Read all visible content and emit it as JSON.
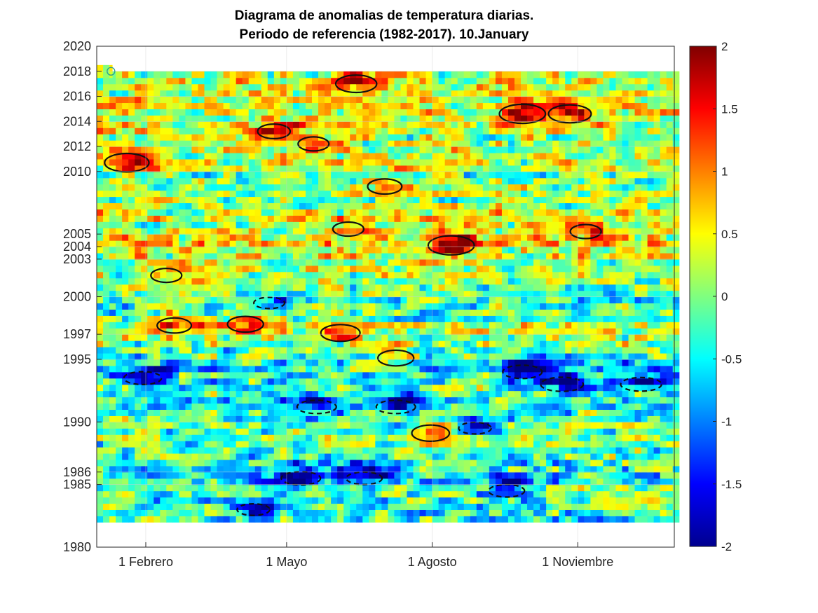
{
  "chart_data": {
    "type": "heatmap",
    "title": "Diagrama de anomalias de temperatura diarias.",
    "subtitle": "Periodo de referencia (1982-2017). 10.January",
    "x_ticks": [
      "1 Febrero",
      "1 Mayo",
      "1 Agosto",
      "1 Noviembre"
    ],
    "x_tick_days": [
      32,
      121,
      213,
      305
    ],
    "x_range": [
      1,
      366
    ],
    "y_ticks": [
      1980,
      1985,
      1986,
      1990,
      1995,
      1997,
      2000,
      2003,
      2004,
      2005,
      2010,
      2012,
      2014,
      2016,
      2018,
      2020
    ],
    "y_range": [
      1980,
      2020
    ],
    "data_years": [
      1982,
      2017
    ],
    "current_day": {
      "year": 2018,
      "day": 10
    },
    "colorbar": {
      "min": -2,
      "max": 2,
      "ticks": [
        2,
        1.5,
        1,
        0.5,
        0,
        -0.5,
        -1,
        -1.5,
        -2
      ],
      "tick_labels": [
        "2",
        "1.5",
        "1",
        "0.5",
        "0",
        "-0.5",
        "-1",
        "-1.5",
        "-2"
      ],
      "colormap": "jet"
    },
    "year_bias": {
      "1982": -0.4,
      "1983": -0.3,
      "1984": -0.2,
      "1985": -0.6,
      "1986": -0.5,
      "1987": -0.3,
      "1988": -0.1,
      "1989": -0.2,
      "1990": -0.3,
      "1991": -0.5,
      "1992": -0.2,
      "1993": -0.4,
      "1994": -0.6,
      "1995": -0.3,
      "1996": 0.1,
      "1997": 0.5,
      "1998": -0.2,
      "1999": -0.3,
      "2000": -0.1,
      "2001": 0.1,
      "2002": 0.3,
      "2003": 0.4,
      "2004": 0.6,
      "2005": 0.2,
      "2006": 0.4,
      "2007": 0.0,
      "2008": 0.1,
      "2009": -0.2,
      "2010": 0.3,
      "2011": 0.3,
      "2012": 0.2,
      "2013": 0.5,
      "2014": 0.4,
      "2015": 0.5,
      "2016": 0.4,
      "2017": 0.3
    },
    "hot_spots": [
      {
        "year": 2010.7,
        "day": 20,
        "amp": 1.8
      },
      {
        "year": 2017.0,
        "day": 165,
        "amp": 1.6
      },
      {
        "year": 2014.6,
        "day": 270,
        "amp": 1.9
      },
      {
        "year": 2014.6,
        "day": 300,
        "amp": 1.7
      },
      {
        "year": 2004.1,
        "day": 225,
        "amp": 1.9
      },
      {
        "year": 1997.1,
        "day": 155,
        "amp": 1.5
      },
      {
        "year": 1997.7,
        "day": 50,
        "amp": 1.2
      },
      {
        "year": 1997.8,
        "day": 95,
        "amp": 1.3
      },
      {
        "year": 1989.1,
        "day": 212,
        "amp": 1.4
      },
      {
        "year": 1995.1,
        "day": 190,
        "amp": 1.3
      },
      {
        "year": 2008.8,
        "day": 183,
        "amp": 1.2
      },
      {
        "year": 2013.2,
        "day": 113,
        "amp": 1.1
      },
      {
        "year": 2012.2,
        "day": 138,
        "amp": 1.0
      },
      {
        "year": 2001.7,
        "day": 45,
        "amp": 1.0
      },
      {
        "year": 2005.4,
        "day": 160,
        "amp": 1.0
      },
      {
        "year": 2005.2,
        "day": 310,
        "amp": 1.0
      }
    ],
    "cold_spots": [
      {
        "year": 1993.0,
        "day": 295,
        "amp": -1.7
      },
      {
        "year": 1993.0,
        "day": 345,
        "amp": -1.6
      },
      {
        "year": 1991.2,
        "day": 140,
        "amp": -1.5
      },
      {
        "year": 1991.2,
        "day": 190,
        "amp": -1.5
      },
      {
        "year": 1985.5,
        "day": 130,
        "amp": -1.5
      },
      {
        "year": 1985.5,
        "day": 170,
        "amp": -1.3
      },
      {
        "year": 1993.5,
        "day": 30,
        "amp": -1.4
      },
      {
        "year": 1984.5,
        "day": 260,
        "amp": -1.3
      },
      {
        "year": 1989.5,
        "day": 240,
        "amp": -1.1
      },
      {
        "year": 1999.5,
        "day": 110,
        "amp": -1.0
      },
      {
        "year": 1994.0,
        "day": 270,
        "amp": -1.5
      },
      {
        "year": 1983.0,
        "day": 100,
        "amp": -1.1
      }
    ]
  }
}
